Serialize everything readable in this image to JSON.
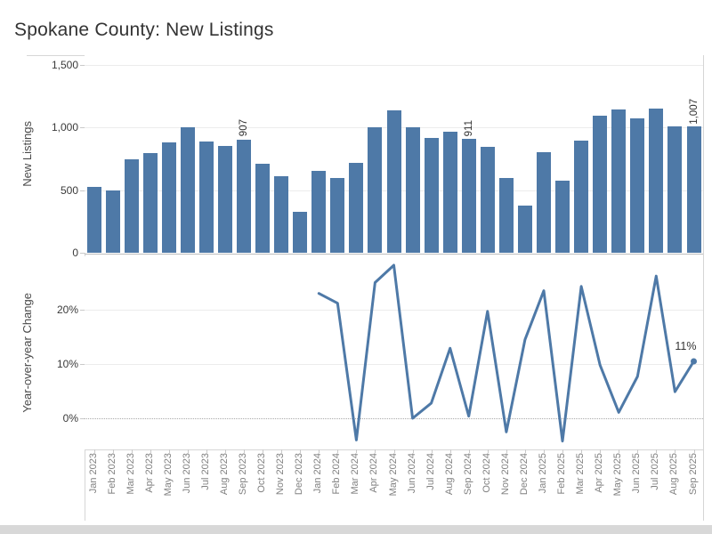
{
  "title": "Spokane County: New Listings",
  "colors": {
    "bar": "#4e79a7",
    "line": "#4e79a7",
    "marker": "#4e79a7",
    "title_text": "#333333",
    "annotation_text": "#333333",
    "axis_tick_text": "#3a3a3a",
    "month_text": "#818181",
    "axis_title_text": "#4a4a4a",
    "gridline": "#ececec",
    "border": "#d6d6d6",
    "footer_strip": "#d8d8d8"
  },
  "chart_data": [
    {
      "type": "bar",
      "title": "Spokane County: New Listings",
      "xlabel": "",
      "ylabel": "New Listings",
      "ylim": [
        0,
        1580
      ],
      "grid": true,
      "yticks": [
        {
          "label": "0",
          "value": 0
        },
        {
          "label": "500",
          "value": 500
        },
        {
          "label": "1,000",
          "value": 1000
        },
        {
          "label": "1,500",
          "value": 1500
        }
      ],
      "categories": [
        "Jan 2023",
        "Feb 2023",
        "Mar 2023",
        "Apr 2023",
        "May 2023",
        "Jun 2023",
        "Jul 2023",
        "Aug 2023",
        "Sep 2023",
        "Oct 2023",
        "Nov 2023",
        "Dec 2023",
        "Jan 2024",
        "Feb 2024",
        "Mar 2024",
        "Apr 2024",
        "May 2024",
        "Jun 2024",
        "Jul 2024",
        "Aug 2024",
        "Sep 2024",
        "Oct 2024",
        "Nov 2024",
        "Dec 2024",
        "Jan 2025",
        "Feb 2025",
        "Mar 2025",
        "Apr 2025",
        "May 2025",
        "Jun 2025",
        "Jul 2025",
        "Aug 2025",
        "Sep 2025"
      ],
      "values": [
        530,
        495,
        750,
        800,
        885,
        1000,
        890,
        855,
        907,
        710,
        610,
        330,
        652,
        600,
        720,
        1000,
        1135,
        1000,
        915,
        965,
        911,
        850,
        595,
        378,
        805,
        575,
        895,
        1098,
        1147,
        1077,
        1155,
        1012,
        1007
      ],
      "annotations": [
        {
          "month": "Sep 2023",
          "text": "907"
        },
        {
          "month": "Sep 2024",
          "text": "911"
        },
        {
          "month": "Sep 2025",
          "text": "1,007"
        }
      ]
    },
    {
      "type": "line",
      "xlabel": "",
      "ylabel": "Year-over-year Change",
      "ylim": [
        -5.8,
        29.8
      ],
      "grid": true,
      "zero_line_style": "dotted",
      "yticks": [
        {
          "label": "0%",
          "value": 0
        },
        {
          "label": "10%",
          "value": 10
        },
        {
          "label": "20%",
          "value": 20
        }
      ],
      "x_start_month": "Jan 2024",
      "values_pct": [
        23.0,
        21.2,
        -4.0,
        25.0,
        28.2,
        0.0,
        2.8,
        12.9,
        0.4,
        19.7,
        -2.5,
        14.5,
        23.5,
        -4.2,
        24.3,
        9.8,
        1.1,
        7.7,
        26.2,
        4.9,
        10.5
      ],
      "end_label": "11%"
    }
  ]
}
